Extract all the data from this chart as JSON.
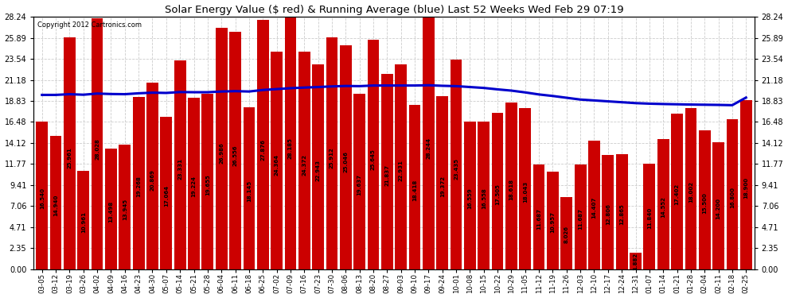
{
  "title": "Solar Energy Value ($ red) & Running Average (blue) Last 52 Weeks Wed Feb 29 07:19",
  "copyright": "Copyright 2012 Cartronics.com",
  "bar_color": "#cc0000",
  "line_color": "#0000cc",
  "background_color": "#ffffff",
  "plot_bg_color": "#ffffff",
  "ylim": [
    0,
    28.24
  ],
  "yticks": [
    0.0,
    2.35,
    4.71,
    7.06,
    9.41,
    11.77,
    14.12,
    16.48,
    18.83,
    21.18,
    23.54,
    25.89,
    28.24
  ],
  "categories": [
    "03-05",
    "03-12",
    "03-19",
    "03-26",
    "04-02",
    "04-09",
    "04-16",
    "04-23",
    "04-30",
    "05-07",
    "05-14",
    "05-21",
    "05-28",
    "06-04",
    "06-11",
    "06-18",
    "06-25",
    "07-02",
    "07-09",
    "07-16",
    "07-23",
    "07-30",
    "08-06",
    "08-13",
    "08-20",
    "08-27",
    "09-03",
    "09-10",
    "09-17",
    "09-24",
    "10-01",
    "10-08",
    "10-15",
    "10-22",
    "10-29",
    "11-05",
    "11-12",
    "11-19",
    "11-26",
    "12-03",
    "12-10",
    "12-17",
    "12-24",
    "12-31",
    "01-07",
    "01-14",
    "01-21",
    "01-28",
    "02-04",
    "02-11",
    "02-18",
    "02-25"
  ],
  "values": [
    16.54,
    14.94,
    25.961,
    10.961,
    28.028,
    13.498,
    13.945,
    19.268,
    20.869,
    17.064,
    23.331,
    19.224,
    19.655,
    26.986,
    26.556,
    18.145,
    27.876,
    24.364,
    28.185,
    24.372,
    22.943,
    25.912,
    25.046,
    19.637,
    25.645,
    21.837,
    22.931,
    18.418,
    28.244,
    19.372,
    23.435,
    16.559,
    16.558,
    17.505,
    18.618,
    18.043,
    11.687,
    10.957,
    8.026,
    11.687,
    14.407,
    12.806,
    12.865,
    1.882,
    11.84,
    14.552,
    17.402,
    18.002,
    15.5,
    14.2,
    16.8,
    18.9
  ],
  "avg_values": [
    19.5,
    19.5,
    19.58,
    19.52,
    19.65,
    19.6,
    19.58,
    19.68,
    19.75,
    19.72,
    19.82,
    19.8,
    19.8,
    19.88,
    19.92,
    19.88,
    20.05,
    20.15,
    20.25,
    20.32,
    20.38,
    20.45,
    20.5,
    20.48,
    20.55,
    20.55,
    20.55,
    20.55,
    20.58,
    20.52,
    20.48,
    20.38,
    20.28,
    20.12,
    19.98,
    19.78,
    19.55,
    19.38,
    19.18,
    18.98,
    18.88,
    18.78,
    18.68,
    18.58,
    18.52,
    18.48,
    18.45,
    18.42,
    18.4,
    18.38,
    18.35,
    19.2
  ]
}
